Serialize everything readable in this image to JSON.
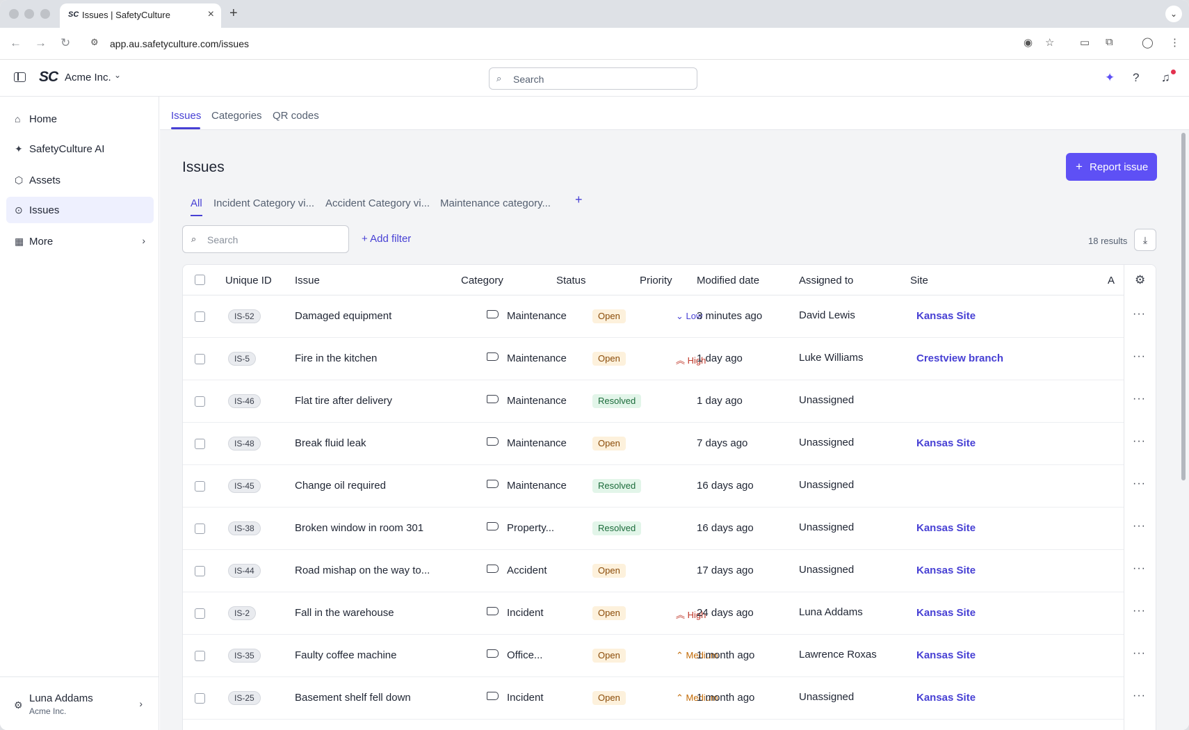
{
  "browser": {
    "tab_title": "Issues | SafetyCulture",
    "tab_favicon": "SC",
    "url": "app.au.safetyculture.com/issues"
  },
  "header": {
    "logo": "SC",
    "org_name": "Acme Inc.",
    "search_placeholder": "Search"
  },
  "sidebar": {
    "items": [
      {
        "label": "Home",
        "icon": "home-icon"
      },
      {
        "label": "SafetyCulture AI",
        "icon": "sparkle-icon"
      },
      {
        "label": "Assets",
        "icon": "cube-icon"
      },
      {
        "label": "Issues",
        "icon": "issue-icon"
      },
      {
        "label": "More",
        "icon": "grid-icon"
      }
    ],
    "user": {
      "name": "Luna Addams",
      "org": "Acme Inc."
    }
  },
  "subtabs": [
    "Issues",
    "Categories",
    "QR codes"
  ],
  "page": {
    "title": "Issues",
    "report_button": "Report issue",
    "views": [
      "All",
      "Incident Category vi...",
      "Accident Category vi...",
      "Maintenance category..."
    ],
    "search_placeholder": "Search",
    "add_filter": "Add filter",
    "results": "18 results"
  },
  "table": {
    "columns": [
      "Unique ID",
      "Issue",
      "Category",
      "Status",
      "Priority",
      "Modified date",
      "Assigned to",
      "Site",
      "A"
    ],
    "rows": [
      {
        "id": "IS-52",
        "issue": "Damaged equipment",
        "category": "Maintenance",
        "status": "Open",
        "priority": "Low",
        "modified": "3 minutes ago",
        "assigned": "David Lewis",
        "site": "Kansas Site"
      },
      {
        "id": "IS-5",
        "issue": "Fire in the kitchen",
        "category": "Maintenance",
        "status": "Open",
        "priority": "High",
        "modified": "1 day ago",
        "assigned": "Luke Williams",
        "site": "Crestview branch"
      },
      {
        "id": "IS-46",
        "issue": "Flat tire after delivery",
        "category": "Maintenance",
        "status": "Resolved",
        "priority": "",
        "modified": "1 day ago",
        "assigned": "Unassigned",
        "site": ""
      },
      {
        "id": "IS-48",
        "issue": "Break fluid leak",
        "category": "Maintenance",
        "status": "Open",
        "priority": "",
        "modified": "7 days ago",
        "assigned": "Unassigned",
        "site": "Kansas Site"
      },
      {
        "id": "IS-45",
        "issue": "Change oil required",
        "category": "Maintenance",
        "status": "Resolved",
        "priority": "",
        "modified": "16 days ago",
        "assigned": "Unassigned",
        "site": ""
      },
      {
        "id": "IS-38",
        "issue": "Broken window in room 301",
        "category": "Property...",
        "status": "Resolved",
        "priority": "",
        "modified": "16 days ago",
        "assigned": "Unassigned",
        "site": "Kansas Site"
      },
      {
        "id": "IS-44",
        "issue": "Road mishap on the way to...",
        "category": "Accident",
        "status": "Open",
        "priority": "",
        "modified": "17 days ago",
        "assigned": "Unassigned",
        "site": "Kansas Site"
      },
      {
        "id": "IS-2",
        "issue": "Fall in the warehouse",
        "category": "Incident",
        "status": "Open",
        "priority": "High",
        "modified": "24 days ago",
        "assigned": "Luna Addams",
        "site": "Kansas Site"
      },
      {
        "id": "IS-35",
        "issue": "Faulty coffee machine",
        "category": "Office...",
        "status": "Open",
        "priority": "Medium",
        "modified": "1 month ago",
        "assigned": "Lawrence Roxas",
        "site": "Kansas Site"
      },
      {
        "id": "IS-25",
        "issue": "Basement shelf fell down",
        "category": "Incident",
        "status": "Open",
        "priority": "Medium",
        "modified": "1 month ago",
        "assigned": "Unassigned",
        "site": "Kansas Site"
      }
    ]
  },
  "colors": {
    "accent": "#5e50f5",
    "link": "#4740d4"
  }
}
